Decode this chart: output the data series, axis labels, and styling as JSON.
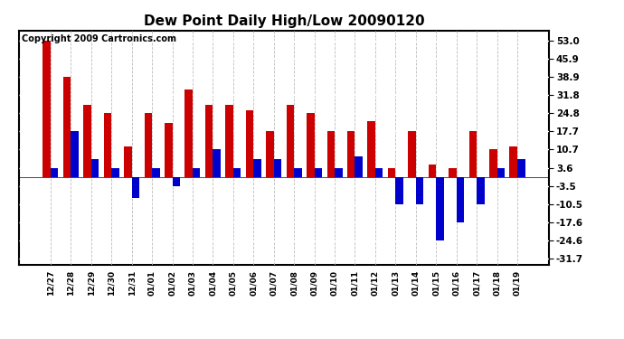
{
  "title": "Dew Point Daily High/Low 20090120",
  "copyright": "Copyright 2009 Cartronics.com",
  "dates": [
    "12/27",
    "12/28",
    "12/29",
    "12/30",
    "12/31",
    "01/01",
    "01/02",
    "01/03",
    "01/04",
    "01/05",
    "01/06",
    "01/07",
    "01/08",
    "01/09",
    "01/10",
    "01/11",
    "01/12",
    "01/13",
    "01/14",
    "01/15",
    "01/16",
    "01/17",
    "01/18",
    "01/19"
  ],
  "highs": [
    53.0,
    38.9,
    28.0,
    24.8,
    12.0,
    24.8,
    21.0,
    34.0,
    28.0,
    28.0,
    26.0,
    17.7,
    28.0,
    24.8,
    17.7,
    17.7,
    21.8,
    3.6,
    17.7,
    5.0,
    3.6,
    17.7,
    10.7,
    12.0
  ],
  "lows": [
    3.6,
    17.7,
    7.0,
    3.6,
    -8.0,
    3.6,
    -3.5,
    3.6,
    10.7,
    3.6,
    7.0,
    7.0,
    3.6,
    3.6,
    3.6,
    8.0,
    3.6,
    -10.5,
    -10.5,
    -24.6,
    -17.6,
    -10.5,
    3.6,
    7.0
  ],
  "yticks": [
    53.0,
    45.9,
    38.9,
    31.8,
    24.8,
    17.7,
    10.7,
    3.6,
    -3.5,
    -10.5,
    -17.6,
    -24.6,
    -31.7
  ],
  "ylim": [
    -34.0,
    57.0
  ],
  "bar_width": 0.38,
  "high_color": "#cc0000",
  "low_color": "#0000cc",
  "bg_color": "#ffffff",
  "title_fontsize": 11,
  "copyright_fontsize": 7
}
